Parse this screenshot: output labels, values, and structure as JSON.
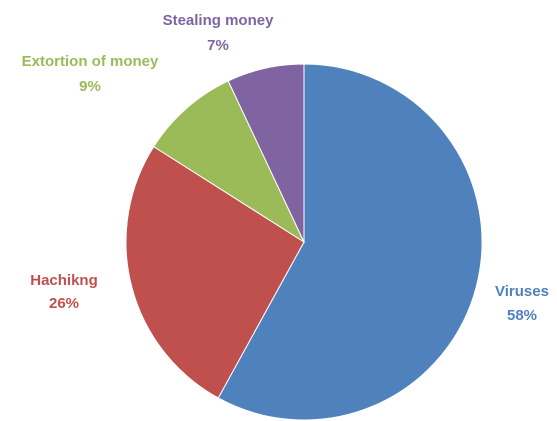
{
  "chart_data": {
    "type": "pie",
    "title": "",
    "slices": [
      {
        "name": "Viruses",
        "value": 58,
        "label": "58%",
        "color": "#4F81BD"
      },
      {
        "name": "Hachikng",
        "value": 26,
        "label": "26%",
        "color": "#C0504D"
      },
      {
        "name": "Extortion of money",
        "value": 9,
        "label": "9%",
        "color": "#9BBB59"
      },
      {
        "name": "Stealing money",
        "value": 7,
        "label": "7%",
        "color": "#8064A2"
      }
    ],
    "legend": "none",
    "start_angle_deg": 0,
    "direction": "clockwise"
  }
}
